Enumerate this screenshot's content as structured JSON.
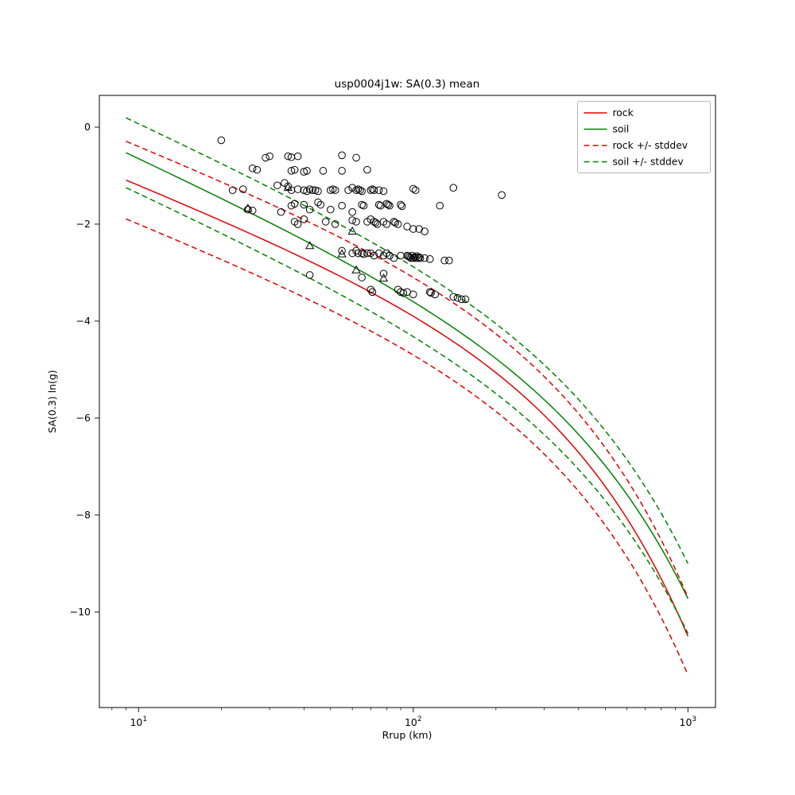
{
  "chart_data": {
    "type": "line",
    "title": "usp0004j1w: SA(0.3) mean",
    "xlabel": "Rrup (km)",
    "ylabel": "SA(0.3) ln(g)",
    "x_scale": "log",
    "xlim": [
      7.2,
      1260
    ],
    "ylim": [
      -11.97,
      0.655
    ],
    "x_major_ticks": [
      {
        "value": 10,
        "base": "10",
        "exp": "1"
      },
      {
        "value": 100,
        "base": "10",
        "exp": "2"
      },
      {
        "value": 1000,
        "base": "10",
        "exp": "3"
      }
    ],
    "y_ticks": [
      {
        "value": 0,
        "label": "0"
      },
      {
        "value": -2,
        "label": "−2"
      },
      {
        "value": -4,
        "label": "−4"
      },
      {
        "value": -6,
        "label": "−6"
      },
      {
        "value": -8,
        "label": "−8"
      },
      {
        "value": -10,
        "label": "−10"
      }
    ],
    "colors": {
      "rock": "#e00000",
      "soil": "#008000",
      "marker": "#000000"
    },
    "models": {
      "rock": {
        "y_at_10": -1.2,
        "ln_slope": 0.98439,
        "lin_slope": 0.0048148
      },
      "soil": {
        "y_at_10": -0.65,
        "ln_slope": 1.12825,
        "lin_slope": 0.0039132
      }
    },
    "curve_x_range": [
      9,
      1000
    ],
    "curves": [
      {
        "name": "rock",
        "base": "rock",
        "offset": 0,
        "dash": false,
        "color": "#e00000"
      },
      {
        "name": "soil",
        "base": "soil",
        "offset": 0,
        "dash": false,
        "color": "#008000"
      },
      {
        "name": "rock-plus",
        "base": "rock",
        "offset": 0.8,
        "dash": true,
        "color": "#e00000"
      },
      {
        "name": "rock-minus",
        "base": "rock",
        "offset": -0.8,
        "dash": true,
        "color": "#e00000"
      },
      {
        "name": "soil-plus",
        "base": "soil",
        "offset": 0.72,
        "dash": true,
        "color": "#008000"
      },
      {
        "name": "soil-minus",
        "base": "soil",
        "offset": -0.72,
        "dash": true,
        "color": "#008000"
      }
    ],
    "legend": {
      "position": "upper right",
      "entries": [
        {
          "label": "rock",
          "color": "#e00000",
          "dash": false
        },
        {
          "label": "soil",
          "color": "#008000",
          "dash": false
        },
        {
          "label": "rock +/- stddev",
          "color": "#e00000",
          "dash": true
        },
        {
          "label": "soil +/- stddev",
          "color": "#008000",
          "dash": true
        }
      ]
    },
    "scatter": {
      "circles": [
        [
          20,
          -0.27
        ],
        [
          29,
          -0.63
        ],
        [
          30,
          -0.6
        ],
        [
          35,
          -0.6
        ],
        [
          36,
          -0.62
        ],
        [
          38,
          -0.6
        ],
        [
          55,
          -0.58
        ],
        [
          62,
          -0.63
        ],
        [
          26,
          -0.85
        ],
        [
          27,
          -0.88
        ],
        [
          36,
          -0.9
        ],
        [
          37,
          -0.88
        ],
        [
          40,
          -0.92
        ],
        [
          41,
          -0.9
        ],
        [
          47,
          -0.9
        ],
        [
          55,
          -0.9
        ],
        [
          68,
          -0.88
        ],
        [
          22,
          -1.3
        ],
        [
          24,
          -1.28
        ],
        [
          32,
          -1.2
        ],
        [
          34,
          -1.15
        ],
        [
          35,
          -1.22
        ],
        [
          36,
          -1.3
        ],
        [
          38,
          -1.28
        ],
        [
          40,
          -1.3
        ],
        [
          41,
          -1.32
        ],
        [
          42,
          -1.28
        ],
        [
          43,
          -1.3
        ],
        [
          44,
          -1.3
        ],
        [
          45,
          -1.32
        ],
        [
          50,
          -1.3
        ],
        [
          51,
          -1.28
        ],
        [
          52,
          -1.3
        ],
        [
          58,
          -1.3
        ],
        [
          60,
          -1.25
        ],
        [
          62,
          -1.3
        ],
        [
          63,
          -1.28
        ],
        [
          64,
          -1.3
        ],
        [
          65,
          -1.32
        ],
        [
          70,
          -1.3
        ],
        [
          71,
          -1.28
        ],
        [
          72,
          -1.3
        ],
        [
          75,
          -1.3
        ],
        [
          78,
          -1.32
        ],
        [
          100,
          -1.27
        ],
        [
          102,
          -1.3
        ],
        [
          140,
          -1.25
        ],
        [
          210,
          -1.4
        ],
        [
          25,
          -1.7
        ],
        [
          26,
          -1.72
        ],
        [
          33,
          -1.75
        ],
        [
          36,
          -1.62
        ],
        [
          37,
          -1.58
        ],
        [
          40,
          -1.6
        ],
        [
          42,
          -1.7
        ],
        [
          45,
          -1.55
        ],
        [
          46,
          -1.6
        ],
        [
          50,
          -1.7
        ],
        [
          55,
          -1.62
        ],
        [
          60,
          -1.75
        ],
        [
          65,
          -1.6
        ],
        [
          66,
          -1.62
        ],
        [
          75,
          -1.6
        ],
        [
          76,
          -1.62
        ],
        [
          80,
          -1.58
        ],
        [
          81,
          -1.6
        ],
        [
          82,
          -1.62
        ],
        [
          90,
          -1.6
        ],
        [
          91,
          -1.63
        ],
        [
          125,
          -1.62
        ],
        [
          37,
          -1.95
        ],
        [
          38,
          -2.0
        ],
        [
          40,
          -1.9
        ],
        [
          48,
          -1.95
        ],
        [
          52,
          -2.0
        ],
        [
          60,
          -1.92
        ],
        [
          62,
          -1.95
        ],
        [
          68,
          -1.95
        ],
        [
          70,
          -1.9
        ],
        [
          72,
          -1.95
        ],
        [
          73,
          -1.97
        ],
        [
          74,
          -2.0
        ],
        [
          78,
          -1.95
        ],
        [
          80,
          -2.0
        ],
        [
          85,
          -1.95
        ],
        [
          86,
          -1.97
        ],
        [
          88,
          -2.0
        ],
        [
          95,
          -2.05
        ],
        [
          100,
          -2.1
        ],
        [
          105,
          -2.1
        ],
        [
          110,
          -2.15
        ],
        [
          55,
          -2.55
        ],
        [
          60,
          -2.6
        ],
        [
          62,
          -2.55
        ],
        [
          63,
          -2.6
        ],
        [
          65,
          -2.6
        ],
        [
          66,
          -2.62
        ],
        [
          68,
          -2.6
        ],
        [
          70,
          -2.6
        ],
        [
          72,
          -2.65
        ],
        [
          75,
          -2.6
        ],
        [
          78,
          -2.65
        ],
        [
          80,
          -2.6
        ],
        [
          82,
          -2.65
        ],
        [
          85,
          -2.7
        ],
        [
          90,
          -2.65
        ],
        [
          95,
          -2.65
        ],
        [
          96,
          -2.66
        ],
        [
          97,
          -2.68
        ],
        [
          98,
          -2.7
        ],
        [
          99,
          -2.65
        ],
        [
          100,
          -2.7
        ],
        [
          101,
          -2.68
        ],
        [
          102,
          -2.7
        ],
        [
          103,
          -2.66
        ],
        [
          104,
          -2.7
        ],
        [
          105,
          -2.68
        ],
        [
          106,
          -2.7
        ],
        [
          110,
          -2.7
        ],
        [
          115,
          -2.72
        ],
        [
          130,
          -2.75
        ],
        [
          135,
          -2.75
        ],
        [
          42,
          -3.05
        ],
        [
          65,
          -3.1
        ],
        [
          78,
          -3.02
        ],
        [
          70,
          -3.35
        ],
        [
          71,
          -3.4
        ],
        [
          88,
          -3.35
        ],
        [
          90,
          -3.4
        ],
        [
          92,
          -3.42
        ],
        [
          95,
          -3.4
        ],
        [
          100,
          -3.45
        ],
        [
          115,
          -3.4
        ],
        [
          116,
          -3.42
        ],
        [
          120,
          -3.45
        ],
        [
          140,
          -3.5
        ],
        [
          145,
          -3.52
        ],
        [
          150,
          -3.55
        ],
        [
          155,
          -3.55
        ]
      ],
      "triangles": [
        [
          35,
          -1.25
        ],
        [
          25,
          -1.68
        ],
        [
          60,
          -2.15
        ],
        [
          42,
          -2.45
        ],
        [
          55,
          -2.62
        ],
        [
          62,
          -2.95
        ],
        [
          78,
          -3.12
        ]
      ]
    }
  }
}
